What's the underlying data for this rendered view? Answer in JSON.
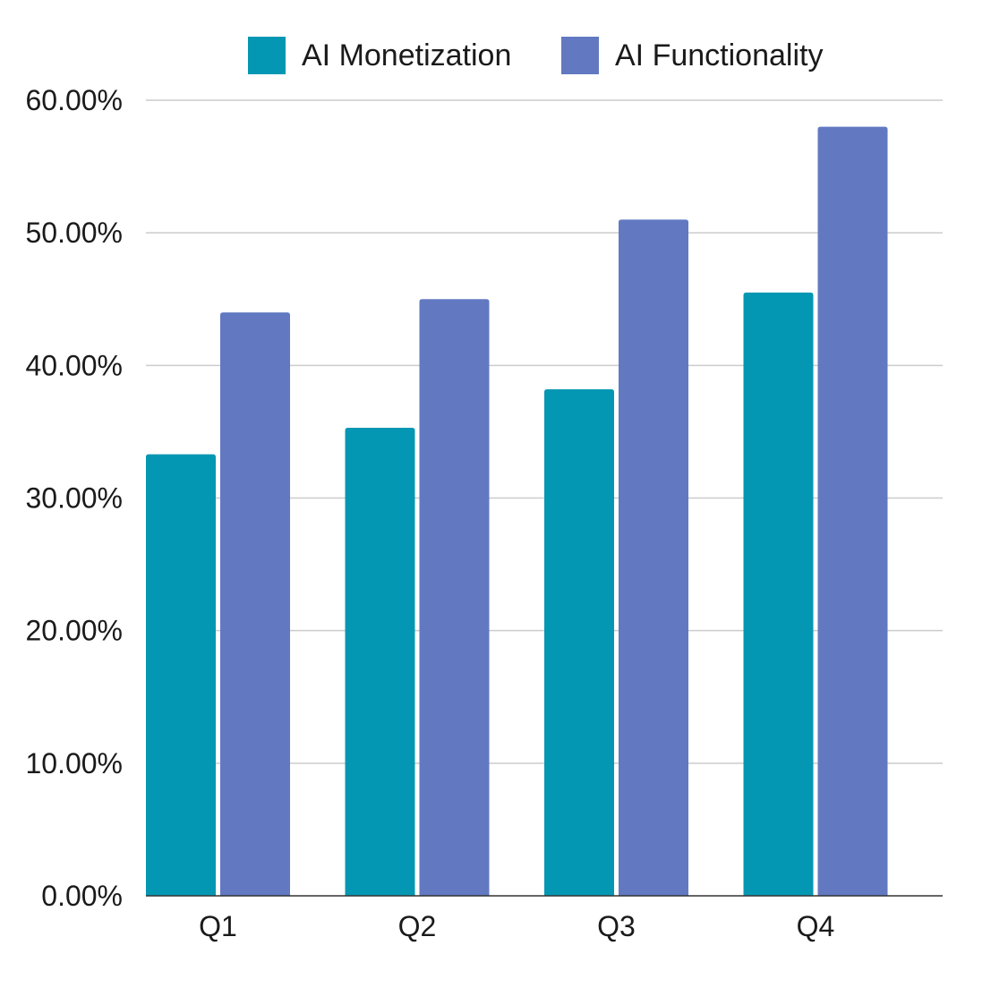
{
  "chart_data": {
    "type": "bar",
    "categories": [
      "Q1",
      "Q2",
      "Q3",
      "Q4"
    ],
    "series": [
      {
        "name": "AI Monetization",
        "color": "#0497B3",
        "values": [
          0.333,
          0.353,
          0.382,
          0.455
        ]
      },
      {
        "name": "AI Functionality",
        "color": "#6279C2",
        "values": [
          0.44,
          0.45,
          0.51,
          0.58
        ]
      }
    ],
    "ylim": [
      0,
      0.6
    ],
    "yticks": [
      0,
      0.1,
      0.2,
      0.3,
      0.4,
      0.5,
      0.6
    ],
    "ytick_labels": [
      "0.00%",
      "10.00%",
      "20.00%",
      "30.00%",
      "40.00%",
      "50.00%",
      "60.00%"
    ],
    "title": "",
    "xlabel": "",
    "ylabel": "",
    "grid": true,
    "legend_position": "top-center"
  }
}
